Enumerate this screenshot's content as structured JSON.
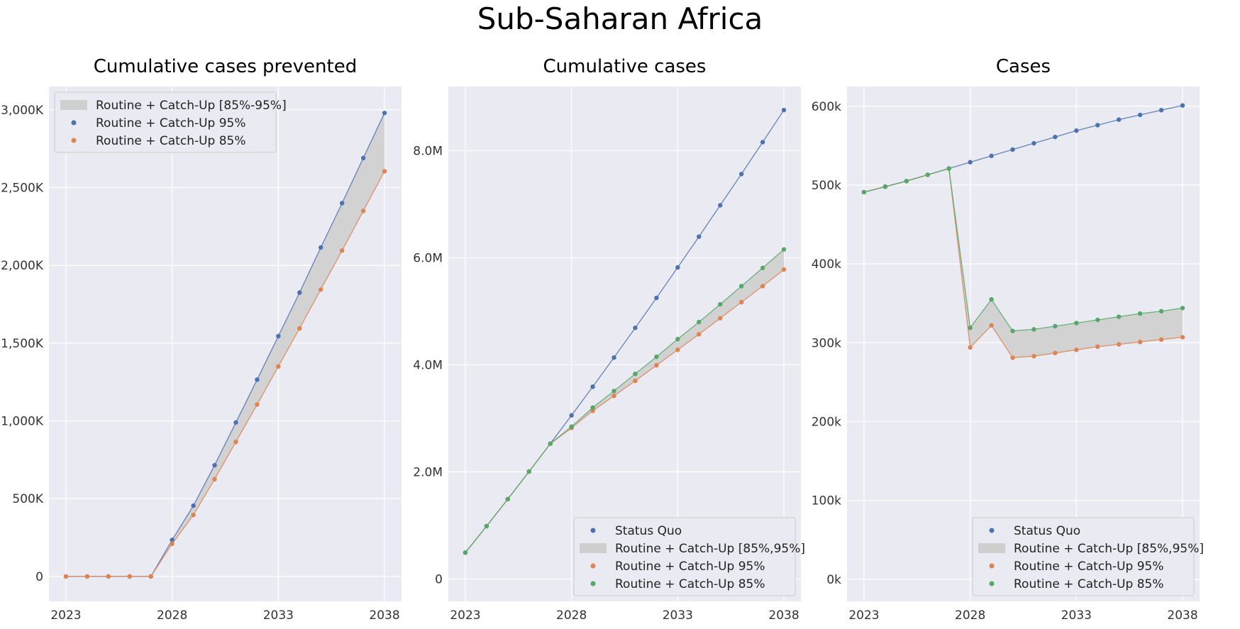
{
  "figure_title": "Sub-Saharan Africa",
  "colors": {
    "blue": "#4c72b0",
    "orange": "#dd8452",
    "green": "#55a868",
    "band": "#cfcfcf",
    "panel_bg": "#eaeaf2",
    "grid": "#ffffff"
  },
  "chart_data": [
    {
      "type": "line",
      "title": "Cumulative cases prevented",
      "x": [
        2023,
        2024,
        2025,
        2026,
        2027,
        2028,
        2029,
        2030,
        2031,
        2032,
        2033,
        2034,
        2035,
        2036,
        2037,
        2038
      ],
      "xlim": [
        2022.2,
        2038.8
      ],
      "xticks": [
        2023,
        2028,
        2033,
        2038
      ],
      "xtick_labels": [
        "2023",
        "2028",
        "2033",
        "2038"
      ],
      "ylim": [
        -160000,
        3150000
      ],
      "yticks": [
        0,
        500000,
        1000000,
        1500000,
        2000000,
        2500000,
        3000000
      ],
      "ytick_labels": [
        "0",
        "500K",
        "1,000K",
        "1,500K",
        "2,000K",
        "2,500K",
        "3,000K"
      ],
      "legend_position": "top-left",
      "band": {
        "label": "Routine + Catch-Up [85%-95%]",
        "upper": "Routine + Catch-Up 95%",
        "lower": "Routine + Catch-Up 85%"
      },
      "series": [
        {
          "name": "Routine + Catch-Up 95%",
          "color": "blue",
          "values": [
            0,
            0,
            0,
            0,
            0,
            235000,
            455000,
            715000,
            990000,
            1265000,
            1545000,
            1825000,
            2115000,
            2400000,
            2690000,
            2980000
          ]
        },
        {
          "name": "Routine + Catch-Up 85%",
          "color": "orange",
          "values": [
            0,
            0,
            0,
            0,
            0,
            210000,
            395000,
            625000,
            865000,
            1105000,
            1350000,
            1595000,
            1845000,
            2095000,
            2350000,
            2605000
          ]
        }
      ],
      "legend": [
        {
          "label": "Routine + Catch-Up [85%-95%]",
          "kind": "band"
        },
        {
          "label": "Routine + Catch-Up 95%",
          "kind": "marker",
          "color": "blue"
        },
        {
          "label": "Routine + Catch-Up 85%",
          "kind": "marker",
          "color": "orange"
        }
      ]
    },
    {
      "type": "line",
      "title": "Cumulative cases",
      "x": [
        2023,
        2024,
        2025,
        2026,
        2027,
        2028,
        2029,
        2030,
        2031,
        2032,
        2033,
        2034,
        2035,
        2036,
        2037,
        2038
      ],
      "xlim": [
        2022.2,
        2038.8
      ],
      "xticks": [
        2023,
        2028,
        2033,
        2038
      ],
      "xtick_labels": [
        "2023",
        "2028",
        "2033",
        "2038"
      ],
      "ylim": [
        -420000,
        9200000
      ],
      "yticks": [
        0,
        2000000,
        4000000,
        6000000,
        8000000
      ],
      "ytick_labels": [
        "0",
        "2.0M",
        "4.0M",
        "6.0M",
        "8.0M"
      ],
      "legend_position": "bottom-right",
      "band": {
        "label": "Routine + Catch-Up [85%,95%]",
        "upper": "Routine + Catch-Up 85%",
        "lower": "Routine + Catch-Up 95%"
      },
      "series": [
        {
          "name": "Status Quo",
          "color": "blue",
          "values": [
            490000,
            985000,
            1490000,
            2005000,
            2525000,
            3055000,
            3590000,
            4135000,
            4690000,
            5250000,
            5820000,
            6395000,
            6980000,
            7565000,
            8160000,
            8760000
          ]
        },
        {
          "name": "Routine + Catch-Up 95%",
          "color": "orange",
          "values": [
            490000,
            985000,
            1490000,
            2005000,
            2525000,
            2820000,
            3140000,
            3420000,
            3700000,
            3990000,
            4280000,
            4570000,
            4870000,
            5170000,
            5470000,
            5780000
          ]
        },
        {
          "name": "Routine + Catch-Up 85%",
          "color": "green",
          "values": [
            490000,
            985000,
            1490000,
            2005000,
            2525000,
            2845000,
            3200000,
            3510000,
            3830000,
            4150000,
            4480000,
            4800000,
            5130000,
            5470000,
            5810000,
            6155000
          ]
        }
      ],
      "legend": [
        {
          "label": "Status Quo",
          "kind": "marker",
          "color": "blue"
        },
        {
          "label": "Routine + Catch-Up [85%,95%]",
          "kind": "band"
        },
        {
          "label": "Routine + Catch-Up 95%",
          "kind": "marker",
          "color": "orange"
        },
        {
          "label": "Routine + Catch-Up 85%",
          "kind": "marker",
          "color": "green"
        }
      ]
    },
    {
      "type": "line",
      "title": "Cases",
      "x": [
        2023,
        2024,
        2025,
        2026,
        2027,
        2028,
        2029,
        2030,
        2031,
        2032,
        2033,
        2034,
        2035,
        2036,
        2037,
        2038
      ],
      "xlim": [
        2022.2,
        2038.8
      ],
      "xticks": [
        2023,
        2028,
        2033,
        2038
      ],
      "xtick_labels": [
        "2023",
        "2028",
        "2033",
        "2038"
      ],
      "ylim": [
        -28000,
        625000
      ],
      "yticks": [
        0,
        100000,
        200000,
        300000,
        400000,
        500000,
        600000
      ],
      "ytick_labels": [
        "0k",
        "100k",
        "200k",
        "300k",
        "400k",
        "500k",
        "600k"
      ],
      "legend_position": "bottom-right",
      "band": {
        "label": "Routine + Catch-Up [85%,95%]",
        "upper": "Routine + Catch-Up 85%",
        "lower": "Routine + Catch-Up 95%"
      },
      "series": [
        {
          "name": "Status Quo",
          "color": "blue",
          "values": [
            491000,
            498000,
            505000,
            513000,
            521000,
            529000,
            537000,
            545000,
            553000,
            561000,
            569000,
            576000,
            583000,
            589000,
            595000,
            601000
          ]
        },
        {
          "name": "Routine + Catch-Up 95%",
          "color": "orange",
          "values": [
            491000,
            498000,
            505000,
            513000,
            521000,
            294000,
            322000,
            281000,
            283000,
            287000,
            291000,
            295000,
            298000,
            301000,
            304000,
            307000
          ]
        },
        {
          "name": "Routine + Catch-Up 85%",
          "color": "green",
          "values": [
            491000,
            498000,
            505000,
            513000,
            521000,
            319000,
            355000,
            315000,
            317000,
            321000,
            325000,
            329000,
            333000,
            337000,
            340000,
            344000
          ]
        }
      ],
      "legend": [
        {
          "label": "Status Quo",
          "kind": "marker",
          "color": "blue"
        },
        {
          "label": "Routine + Catch-Up [85%,95%]",
          "kind": "band"
        },
        {
          "label": "Routine + Catch-Up 95%",
          "kind": "marker",
          "color": "orange"
        },
        {
          "label": "Routine + Catch-Up 85%",
          "kind": "marker",
          "color": "green"
        }
      ]
    }
  ]
}
